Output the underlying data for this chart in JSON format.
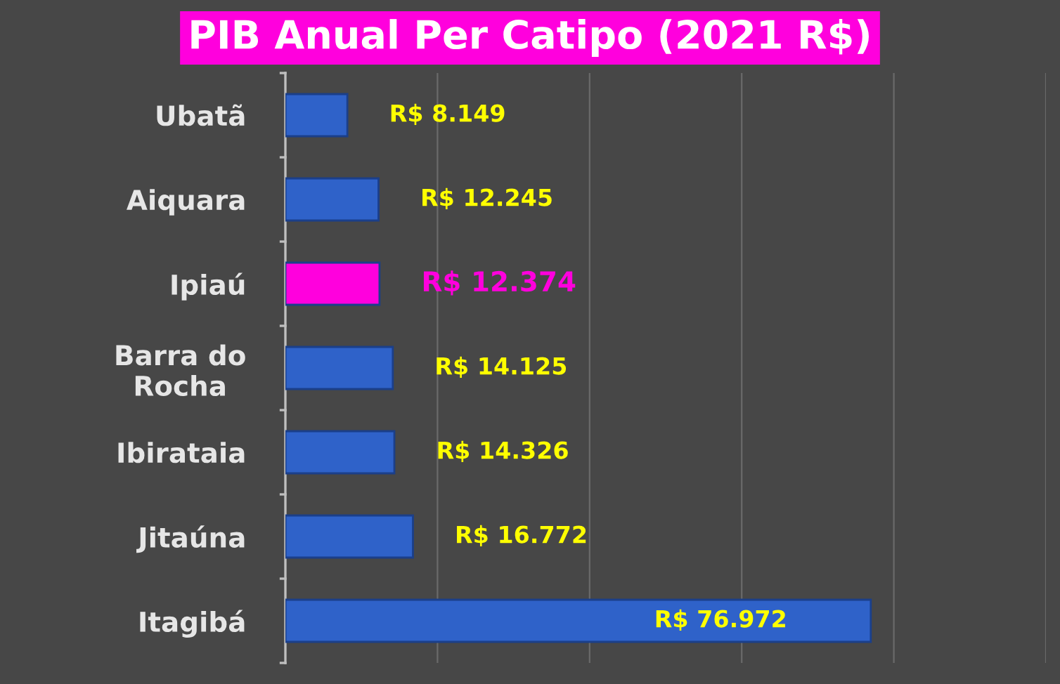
{
  "chart_data": {
    "type": "bar",
    "orientation": "horizontal",
    "title": "PIB Anual Per Catipo (2021 R$)",
    "categories": [
      "Ubatã",
      "Aiquara",
      "Ipiaú",
      "Barra do\nRocha",
      "Ibirataia",
      "Jitaúna",
      "Itagibá"
    ],
    "values": [
      8149,
      12245,
      12374,
      14125,
      14326,
      16772,
      76972
    ],
    "colors": [
      "#2f62c9",
      "#2f62c9",
      "#ff00dd",
      "#2f62c9",
      "#2f62c9",
      "#2f62c9",
      "#2f62c9"
    ],
    "value_labels": [
      "R$ 8.149",
      "R$ 12.245",
      "R$ 12.374",
      "R$ 14.125",
      "R$ 14.326",
      "R$ 16.772",
      "R$ 76.972"
    ],
    "xlim": [
      0,
      100000
    ],
    "xticks": [
      {
        "value": 0,
        "label": null
      },
      {
        "value": 20000,
        "label": null
      },
      {
        "value": 40000,
        "label": null
      },
      {
        "value": 60000,
        "label": null
      },
      {
        "value": 80000,
        "label": null
      },
      {
        "value": 100000,
        "label": null
      }
    ],
    "tick_labels": "y",
    "grid": "x",
    "legend": false
  }
}
